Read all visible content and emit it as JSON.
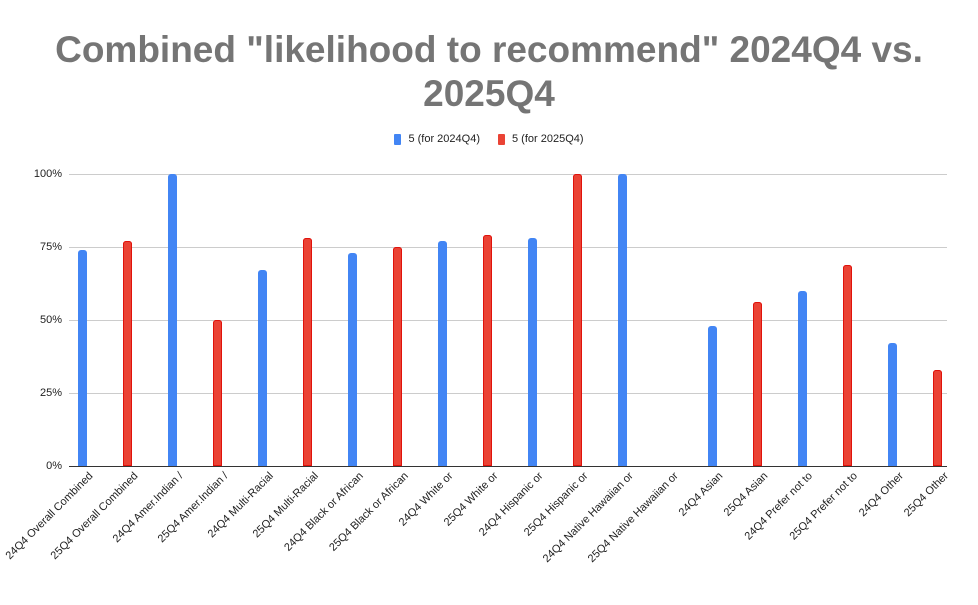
{
  "chart_data": {
    "type": "bar",
    "title": "Combined \"likelihood to recommend\" 2024Q4 vs. 2025Q4",
    "title_line1": "Combined \"likelihood to recommend\" 2024Q4 vs.",
    "title_line2": "2025Q4",
    "xlabel": "",
    "ylabel": "",
    "ylim": [
      0,
      100
    ],
    "yticks": [
      "0%",
      "25%",
      "50%",
      "75%",
      "100%"
    ],
    "grid": true,
    "legend_position": "top",
    "legend": [
      {
        "name": "5 (for 2024Q4)",
        "color": "#4285f4"
      },
      {
        "name": "5 (for 2025Q4)",
        "color": "#ea4335"
      }
    ],
    "categories": [
      "24Q4 Overall Combined",
      "25Q4 Overall Combined",
      "24Q4 Amer.Indian /",
      "25Q4 Amer.Indian /",
      "24Q4 Multi-Racial",
      "25Q4 Multi-Racial",
      "24Q4 Black or African",
      "25Q4 Black or African",
      "24Q4 White or",
      "25Q4 White or",
      "24Q4 Hispanic or",
      "25Q4 Hispanic or",
      "24Q4 Native Hawaiian or",
      "25Q4 Native Hawaiian or",
      "24Q4 Asian",
      "25Q4 Asian",
      "24Q4 Prefer not to",
      "25Q4 Prefer not to",
      "24Q4 Other",
      "25Q4 Other"
    ],
    "series": [
      {
        "name": "5 (for 2024Q4)",
        "color": "#4285f4",
        "values": [
          74,
          null,
          100,
          null,
          67,
          null,
          73,
          null,
          77,
          null,
          78,
          null,
          100,
          null,
          48,
          null,
          60,
          null,
          42,
          null
        ]
      },
      {
        "name": "5 (for 2025Q4)",
        "color": "#ea4335",
        "values": [
          null,
          77,
          null,
          50,
          null,
          78,
          null,
          75,
          null,
          79,
          null,
          100,
          null,
          0,
          null,
          56,
          null,
          69,
          null,
          33
        ]
      }
    ]
  }
}
